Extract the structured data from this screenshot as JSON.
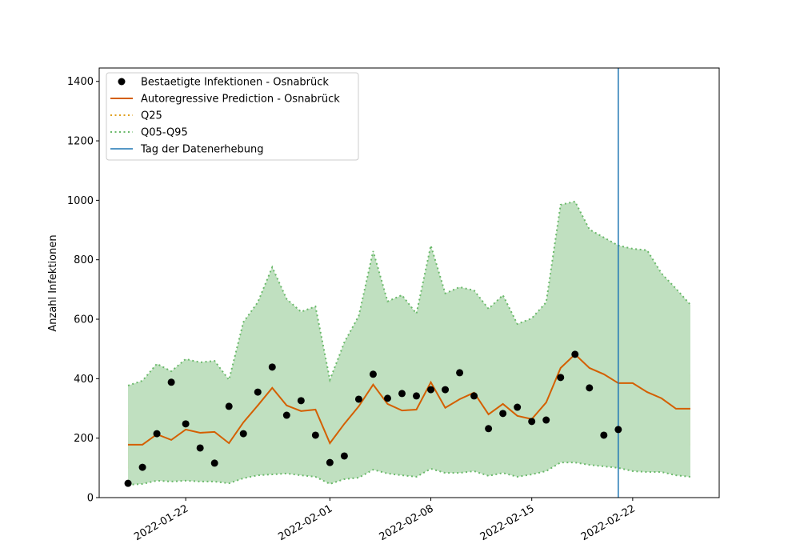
{
  "chart_data": {
    "type": "line",
    "ylabel": "Anzahl Infektionen",
    "x": [
      "2022-01-18",
      "2022-01-19",
      "2022-01-20",
      "2022-01-21",
      "2022-01-22",
      "2022-01-23",
      "2022-01-24",
      "2022-01-25",
      "2022-01-26",
      "2022-01-27",
      "2022-01-28",
      "2022-01-29",
      "2022-01-30",
      "2022-01-31",
      "2022-02-01",
      "2022-02-02",
      "2022-02-03",
      "2022-02-04",
      "2022-02-05",
      "2022-02-06",
      "2022-02-07",
      "2022-02-08",
      "2022-02-09",
      "2022-02-10",
      "2022-02-11",
      "2022-02-12",
      "2022-02-13",
      "2022-02-14",
      "2022-02-15",
      "2022-02-16",
      "2022-02-17",
      "2022-02-18",
      "2022-02-19",
      "2022-02-20",
      "2022-02-21",
      "2022-02-22",
      "2022-02-23",
      "2022-02-24",
      "2022-02-25",
      "2022-02-26"
    ],
    "series": [
      {
        "name": "Bestaetigte Infektionen - Osnabrück",
        "kind": "scatter",
        "color": "#000000",
        "values": [
          48,
          102,
          215,
          388,
          248,
          167,
          116,
          307,
          215,
          355,
          439,
          277,
          326,
          210,
          118,
          140,
          331,
          415,
          334,
          350,
          342,
          363,
          363,
          420,
          342,
          232,
          283,
          304,
          256,
          261,
          404,
          482,
          369,
          210,
          229,
          null,
          null,
          null,
          null,
          null
        ]
      },
      {
        "name": "Autoregressive Prediction - Osnabrück",
        "kind": "line",
        "color": "#d45f00",
        "values": [
          178,
          178,
          213,
          194,
          229,
          218,
          221,
          183,
          253,
          310,
          369,
          310,
          291,
          296,
          183,
          248,
          307,
          380,
          315,
          293,
          296,
          388,
          302,
          331,
          353,
          280,
          315,
          275,
          264,
          320,
          436,
          482,
          436,
          415,
          385,
          385,
          355,
          334,
          299,
          299
        ]
      },
      {
        "name": "Q25",
        "kind": "band",
        "color": "#e0a020",
        "fill": "#d4bb5c",
        "lower": [
          100,
          108,
          121,
          113,
          129,
          118,
          113,
          105,
          148,
          186,
          191,
          188,
          162,
          164,
          105,
          135,
          167,
          218,
          180,
          162,
          162,
          218,
          175,
          180,
          194,
          159,
          175,
          164,
          162,
          194,
          245,
          256,
          242,
          237,
          221,
          213,
          199,
          188,
          180,
          178
        ],
        "upper": [
          242,
          237,
          275,
          256,
          302,
          285,
          291,
          248,
          345,
          401,
          477,
          401,
          382,
          393,
          248,
          328,
          398,
          493,
          407,
          388,
          390,
          501,
          393,
          434,
          452,
          366,
          423,
          353,
          363,
          434,
          568,
          630,
          584,
          560,
          522,
          501,
          474,
          447,
          417,
          412
        ]
      },
      {
        "name": "Q05-Q95",
        "kind": "band",
        "color": "#6ab96a",
        "fill": "#c0e0c0",
        "lower": [
          43,
          46,
          57,
          54,
          57,
          54,
          54,
          48,
          65,
          75,
          78,
          81,
          75,
          70,
          46,
          62,
          67,
          94,
          81,
          75,
          70,
          97,
          83,
          83,
          89,
          73,
          83,
          70,
          78,
          89,
          118,
          118,
          110,
          105,
          100,
          89,
          86,
          86,
          75,
          70
        ],
        "upper": [
          377,
          393,
          450,
          425,
          466,
          455,
          460,
          396,
          590,
          657,
          775,
          668,
          625,
          643,
          396,
          522,
          611,
          829,
          660,
          681,
          619,
          848,
          687,
          708,
          697,
          635,
          681,
          584,
          603,
          657,
          985,
          996,
          902,
          875,
          848,
          837,
          832,
          754,
          703,
          649
        ]
      },
      {
        "name": "Tag der Datenerhebung",
        "kind": "vline",
        "color": "#1f77b4",
        "x": "2022-02-21"
      }
    ],
    "xlim": [
      "2022-01-16",
      "2022-02-28"
    ],
    "xticks": [
      "2022-01-22",
      "2022-02-01",
      "2022-02-08",
      "2022-02-15",
      "2022-02-22"
    ],
    "ylim": [
      0,
      1445
    ],
    "yticks": [
      0,
      200,
      400,
      600,
      800,
      1000,
      1200,
      1400
    ],
    "legend": "upper left"
  }
}
